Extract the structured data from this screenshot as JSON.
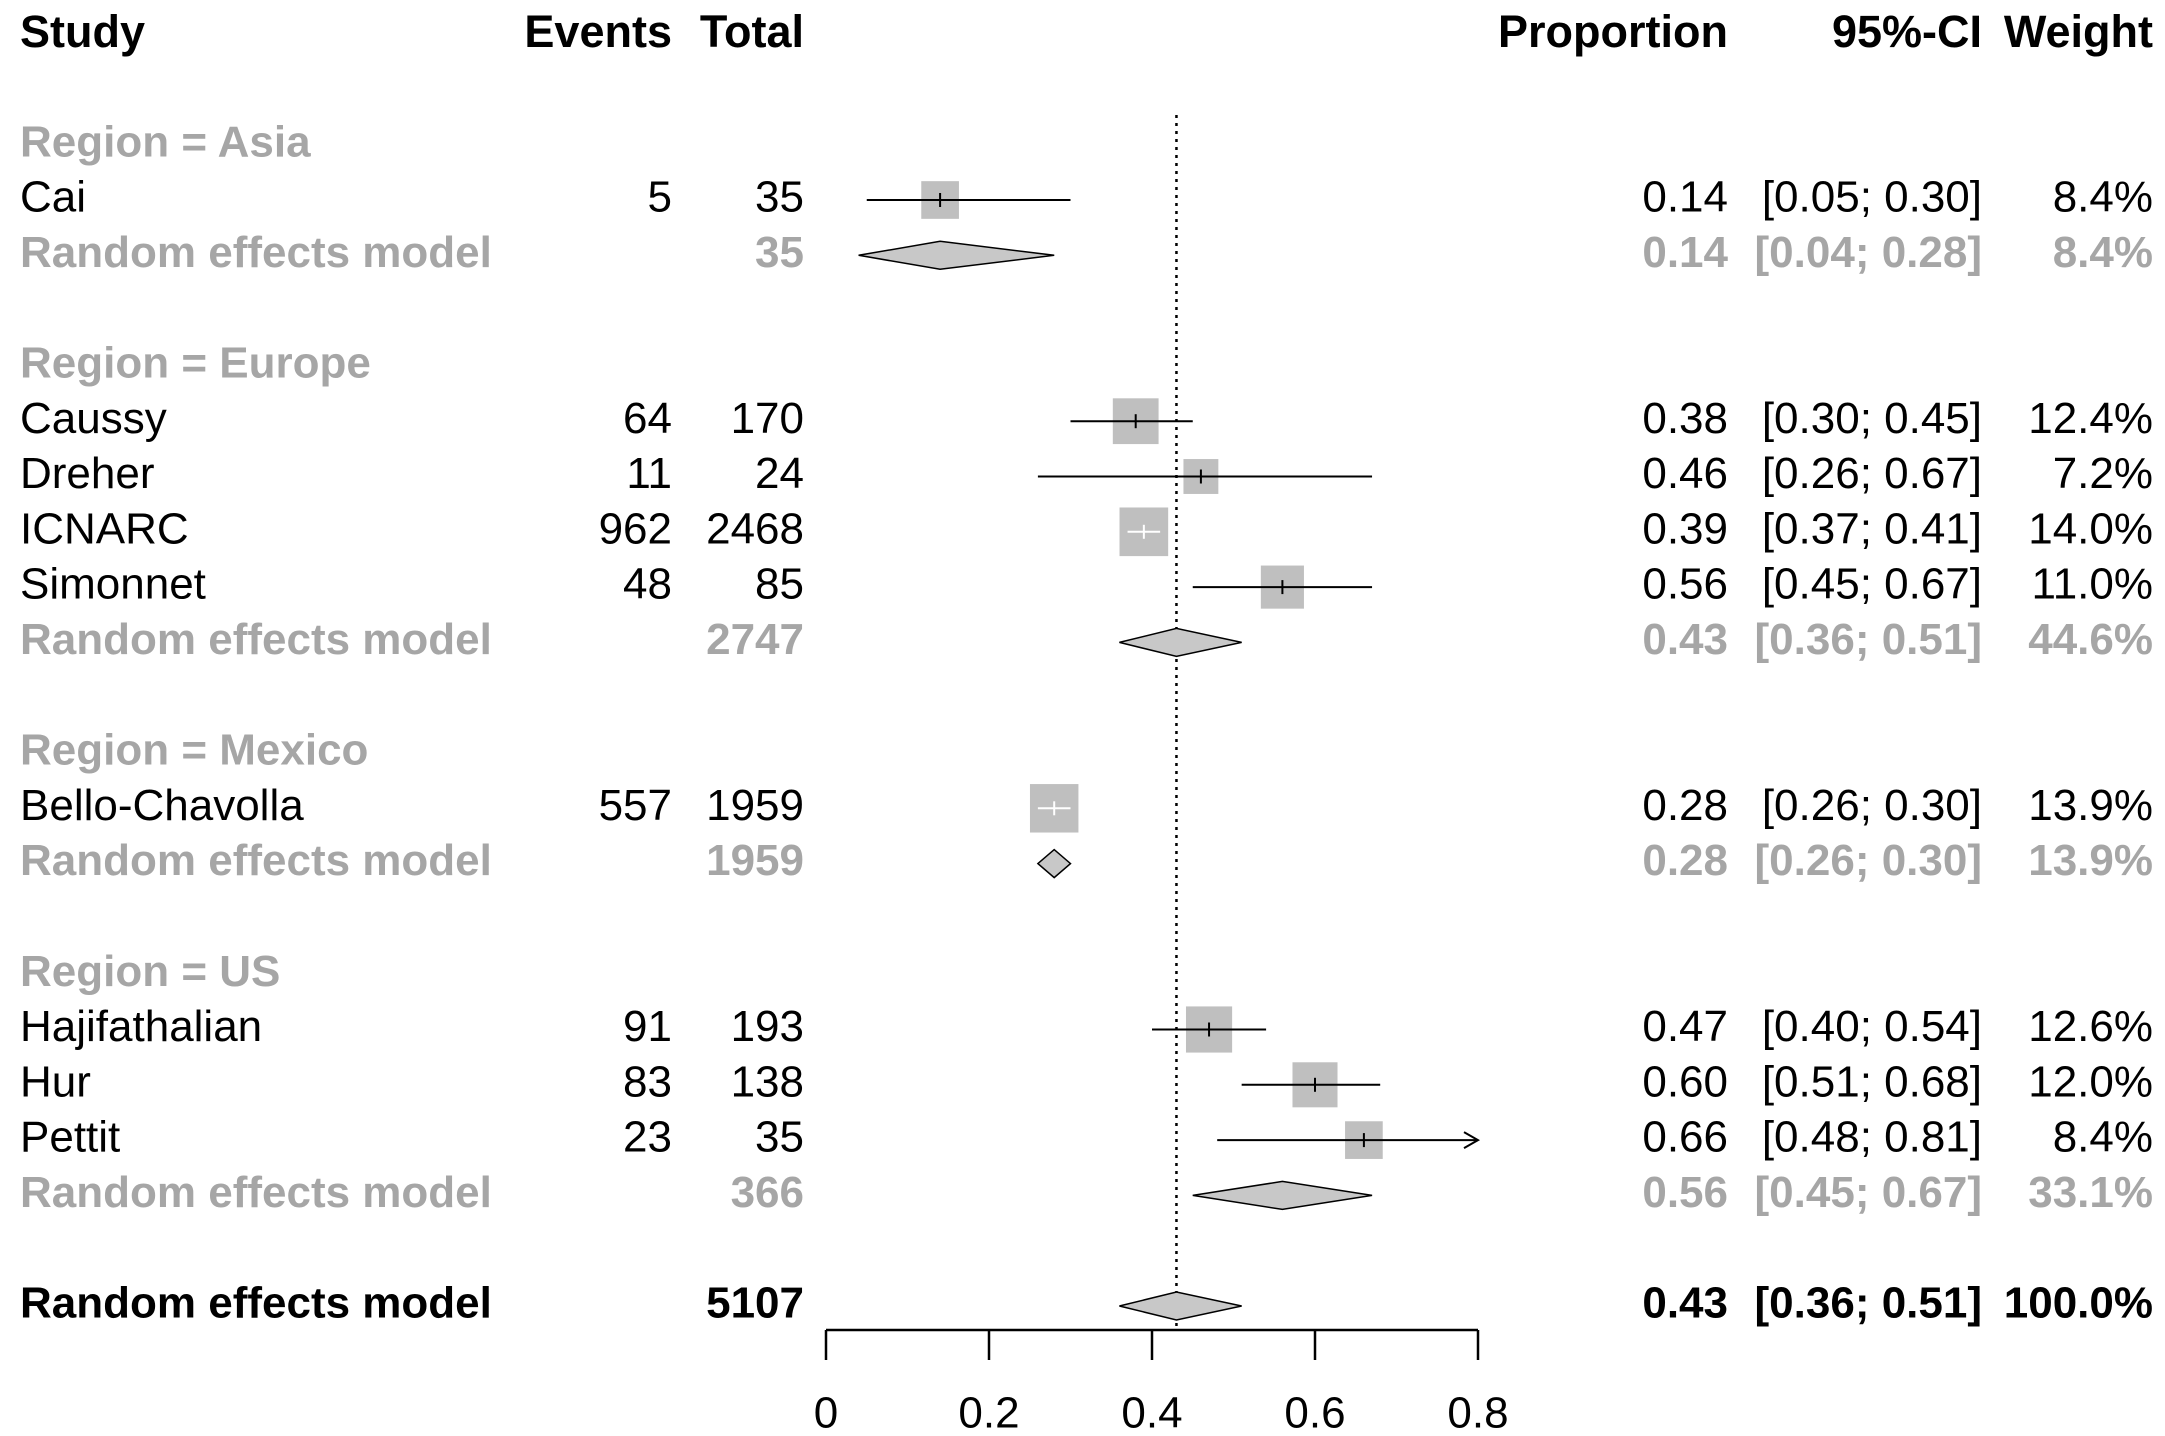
{
  "chart_data": {
    "type": "forest",
    "headers": {
      "study": "Study",
      "events": "Events",
      "total": "Total",
      "proportion": "Proportion",
      "ci": "95%-CI",
      "weight": "Weight"
    },
    "axis": {
      "min": 0,
      "max": 0.8,
      "ticks": [
        "0",
        "0.2",
        "0.4",
        "0.6",
        "0.8"
      ],
      "tick_values": [
        0,
        0.2,
        0.4,
        0.6,
        0.8
      ]
    },
    "overall_line": 0.43,
    "groups": [
      {
        "label": "Region = Asia",
        "studies": [
          {
            "study": "Cai",
            "events": "5",
            "total": "35",
            "est": 0.14,
            "lo": 0.05,
            "hi": 0.3,
            "prop": "0.14",
            "ci": "[0.05; 0.30]",
            "weight": "8.4%",
            "w": 8.4
          }
        ],
        "model": {
          "label": "Random effects model",
          "total": "35",
          "est": 0.14,
          "lo": 0.04,
          "hi": 0.28,
          "prop": "0.14",
          "ci": "[0.04; 0.28]",
          "weight": "8.4%"
        }
      },
      {
        "label": "Region = Europe",
        "studies": [
          {
            "study": "Caussy",
            "events": "64",
            "total": "170",
            "est": 0.38,
            "lo": 0.3,
            "hi": 0.45,
            "prop": "0.38",
            "ci": "[0.30; 0.45]",
            "weight": "12.4%",
            "w": 12.4
          },
          {
            "study": "Dreher",
            "events": "11",
            "total": "24",
            "est": 0.46,
            "lo": 0.26,
            "hi": 0.67,
            "prop": "0.46",
            "ci": "[0.26; 0.67]",
            "weight": "7.2%",
            "w": 7.2
          },
          {
            "study": "ICNARC",
            "events": "962",
            "total": "2468",
            "est": 0.39,
            "lo": 0.37,
            "hi": 0.41,
            "prop": "0.39",
            "ci": "[0.37; 0.41]",
            "weight": "14.0%",
            "w": 14.0
          },
          {
            "study": "Simonnet",
            "events": "48",
            "total": "85",
            "est": 0.56,
            "lo": 0.45,
            "hi": 0.67,
            "prop": "0.56",
            "ci": "[0.45; 0.67]",
            "weight": "11.0%",
            "w": 11.0
          }
        ],
        "model": {
          "label": "Random effects model",
          "total": "2747",
          "est": 0.43,
          "lo": 0.36,
          "hi": 0.51,
          "prop": "0.43",
          "ci": "[0.36; 0.51]",
          "weight": "44.6%"
        }
      },
      {
        "label": "Region = Mexico",
        "studies": [
          {
            "study": "Bello-Chavolla",
            "events": "557",
            "total": "1959",
            "est": 0.28,
            "lo": 0.26,
            "hi": 0.3,
            "prop": "0.28",
            "ci": "[0.26; 0.30]",
            "weight": "13.9%",
            "w": 13.9
          }
        ],
        "model": {
          "label": "Random effects model",
          "total": "1959",
          "est": 0.28,
          "lo": 0.26,
          "hi": 0.3,
          "prop": "0.28",
          "ci": "[0.26; 0.30]",
          "weight": "13.9%"
        }
      },
      {
        "label": "Region = US",
        "studies": [
          {
            "study": "Hajifathalian",
            "events": "91",
            "total": "193",
            "est": 0.47,
            "lo": 0.4,
            "hi": 0.54,
            "prop": "0.47",
            "ci": "[0.40; 0.54]",
            "weight": "12.6%",
            "w": 12.6
          },
          {
            "study": "Hur",
            "events": "83",
            "total": "138",
            "est": 0.6,
            "lo": 0.51,
            "hi": 0.68,
            "prop": "0.60",
            "ci": "[0.51; 0.68]",
            "weight": "12.0%",
            "w": 12.0
          },
          {
            "study": "Pettit",
            "events": "23",
            "total": "35",
            "est": 0.66,
            "lo": 0.48,
            "hi": 0.81,
            "prop": "0.66",
            "ci": "[0.48; 0.81]",
            "weight": "8.4%",
            "w": 8.4
          }
        ],
        "model": {
          "label": "Random effects model",
          "total": "366",
          "est": 0.56,
          "lo": 0.45,
          "hi": 0.67,
          "prop": "0.56",
          "ci": "[0.45; 0.67]",
          "weight": "33.1%"
        }
      }
    ],
    "overall": {
      "label": "Random effects model",
      "total": "5107",
      "est": 0.43,
      "lo": 0.36,
      "hi": 0.51,
      "prop": "0.43",
      "ci": "[0.36; 0.51]",
      "weight": "100.0%"
    }
  },
  "colors": {
    "text": "#000000",
    "subgroup": "#a6a6a6",
    "square": "#bfbfbf",
    "diamond": "#c8c8c8"
  }
}
